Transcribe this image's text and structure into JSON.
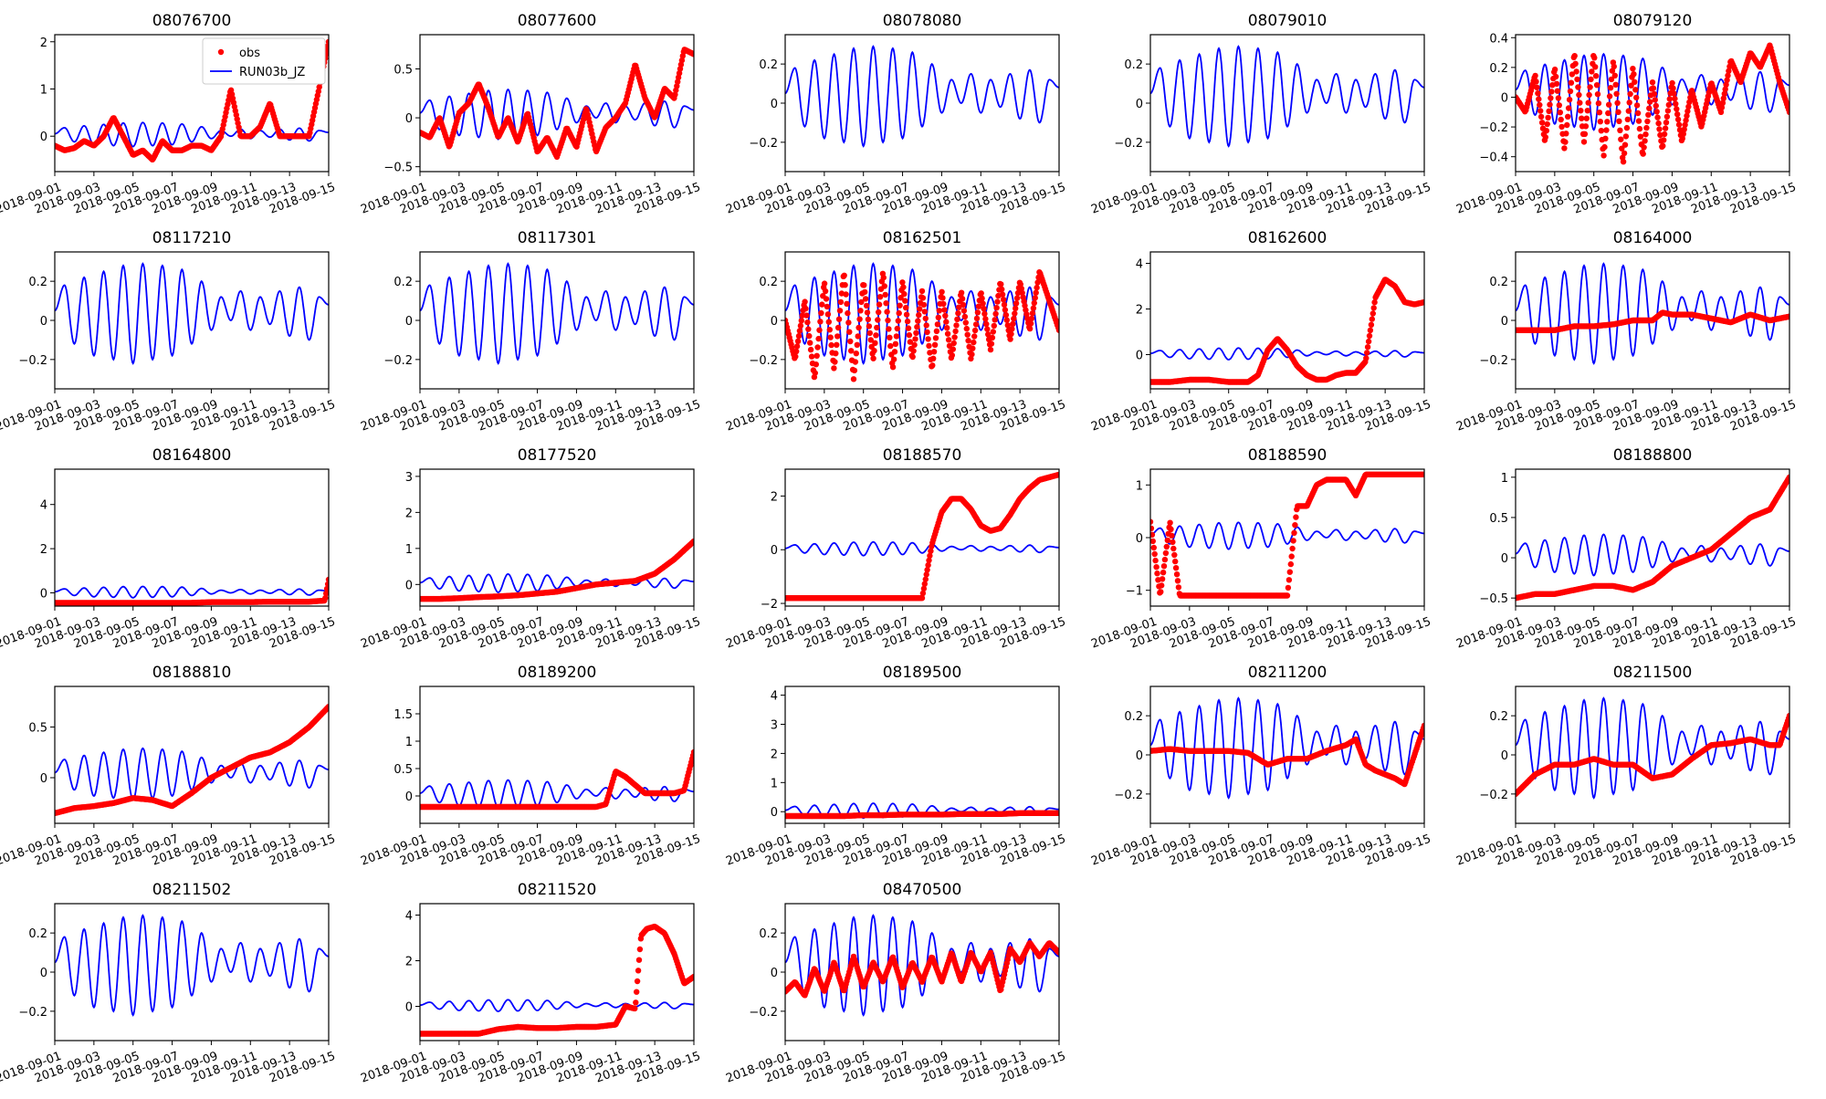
{
  "figure": {
    "columns": 5,
    "rows": 5
  },
  "legend": {
    "obs_label": "obs",
    "model_label": "RUN03b_JZ",
    "placement": "top-right",
    "panel": "08076700"
  },
  "colors": {
    "obs": "#ff0000",
    "model": "#0000ff",
    "axis": "#000000"
  },
  "x_axis": {
    "start": "2018-09-01",
    "end": "2018-09-15",
    "tick_labels": [
      "2018-09-01",
      "2018-09-03",
      "2018-09-05",
      "2018-09-07",
      "2018-09-09",
      "2018-09-11",
      "2018-09-13",
      "2018-09-15"
    ],
    "tick_rotation_deg": -20
  },
  "model_series": {
    "name": "RUN03b_JZ",
    "x_days": [
      0,
      0.5,
      1,
      1.5,
      2,
      2.5,
      3,
      3.5,
      4,
      4.5,
      5,
      5.5,
      6,
      6.5,
      7,
      7.5,
      8,
      8.5,
      9,
      9.5,
      10,
      10.5,
      11,
      11.5,
      12,
      12.5,
      13,
      13.5,
      14
    ],
    "note_values": "approx. shared tide-like oscillation in each panel (m)",
    "values": [
      0.05,
      0.18,
      -0.12,
      0.22,
      -0.18,
      0.25,
      -0.2,
      0.28,
      -0.22,
      0.29,
      -0.2,
      0.28,
      -0.18,
      0.26,
      -0.12,
      0.2,
      -0.05,
      0.12,
      0.0,
      0.15,
      -0.05,
      0.12,
      -0.02,
      0.15,
      -0.08,
      0.17,
      -0.1,
      0.12,
      0.08
    ]
  },
  "chart_data": [
    {
      "type": "scatter",
      "title": "08076700",
      "ylim": [
        -0.75,
        2.15
      ],
      "yticks": [
        0,
        1,
        2
      ],
      "has_obs": true,
      "obs": {
        "x": [
          0,
          0.5,
          1,
          1.5,
          2,
          2.5,
          3,
          3.5,
          4,
          4.5,
          5,
          5.5,
          6,
          6.5,
          7,
          7.5,
          8,
          8.5,
          9,
          9.2,
          9.5,
          10,
          10.5,
          11,
          11.5,
          12,
          12.5,
          13,
          13.5,
          14
        ],
        "y": [
          -0.2,
          -0.3,
          -0.25,
          -0.1,
          -0.2,
          0.0,
          0.4,
          0.0,
          -0.4,
          -0.3,
          -0.5,
          -0.1,
          -0.3,
          -0.3,
          -0.2,
          -0.2,
          -0.3,
          0.0,
          1.0,
          0.6,
          0.0,
          0.0,
          0.2,
          0.7,
          0.0,
          0.0,
          0.0,
          0.0,
          1.0,
          2.0
        ]
      }
    },
    {
      "type": "scatter",
      "title": "08077600",
      "ylim": [
        -0.55,
        0.85
      ],
      "yticks": [
        -0.5,
        0,
        0.5
      ],
      "has_obs": true,
      "obs": {
        "x": [
          0,
          0.5,
          1,
          1.5,
          2,
          2.5,
          3,
          3.5,
          4,
          4.5,
          5,
          5.5,
          6,
          6.5,
          7,
          7.5,
          8,
          8.5,
          9,
          9.5,
          10,
          10.5,
          11,
          11.5,
          12,
          12.5,
          13,
          13.5,
          14
        ],
        "y": [
          -0.15,
          -0.2,
          0.0,
          -0.3,
          0.05,
          0.15,
          0.35,
          0.1,
          -0.2,
          0.0,
          -0.25,
          0.05,
          -0.35,
          -0.2,
          -0.4,
          -0.1,
          -0.3,
          0.1,
          -0.35,
          -0.1,
          0.0,
          0.15,
          0.55,
          0.2,
          0.0,
          0.3,
          0.2,
          0.7,
          0.65
        ]
      }
    },
    {
      "type": "line",
      "title": "08078080",
      "ylim": [
        -0.35,
        0.35
      ],
      "yticks": [
        -0.2,
        0,
        0.2
      ],
      "has_obs": false
    },
    {
      "type": "line",
      "title": "08079010",
      "ylim": [
        -0.35,
        0.35
      ],
      "yticks": [
        -0.2,
        0,
        0.2
      ],
      "has_obs": false
    },
    {
      "type": "scatter",
      "title": "08079120",
      "ylim": [
        -0.5,
        0.42
      ],
      "yticks": [
        -0.4,
        -0.2,
        0,
        0.2,
        0.4
      ],
      "has_obs": true,
      "obs": {
        "x": [
          0,
          0.5,
          1,
          1.5,
          2,
          2.5,
          3,
          3.5,
          4,
          4.5,
          5,
          5.5,
          6,
          6.5,
          7,
          7.5,
          8,
          8.5,
          9,
          9.5,
          10,
          10.5,
          11,
          11.5,
          12,
          12.5,
          13,
          13.5,
          14
        ],
        "y": [
          0.0,
          -0.1,
          0.15,
          -0.3,
          0.2,
          -0.35,
          0.3,
          -0.3,
          0.3,
          -0.4,
          0.25,
          -0.45,
          0.2,
          -0.4,
          0.1,
          -0.35,
          0.1,
          -0.3,
          0.05,
          -0.2,
          0.1,
          -0.1,
          0.25,
          0.1,
          0.3,
          0.2,
          0.35,
          0.1,
          -0.1
        ]
      }
    },
    {
      "type": "line",
      "title": "08117210",
      "ylim": [
        -0.35,
        0.35
      ],
      "yticks": [
        -0.2,
        0,
        0.2
      ],
      "has_obs": false
    },
    {
      "type": "line",
      "title": "08117301",
      "ylim": [
        -0.35,
        0.35
      ],
      "yticks": [
        -0.2,
        0,
        0.2
      ],
      "has_obs": false
    },
    {
      "type": "scatter",
      "title": "08162501",
      "ylim": [
        -0.35,
        0.35
      ],
      "yticks": [
        -0.2,
        0,
        0.2
      ],
      "has_obs": true,
      "obs": {
        "x": [
          0,
          0.5,
          1,
          1.5,
          2,
          2.5,
          3,
          3.5,
          4,
          4.5,
          5,
          5.5,
          6,
          6.5,
          7,
          7.5,
          8,
          8.5,
          9,
          9.5,
          10,
          10.5,
          11,
          11.5,
          12,
          12.5,
          13,
          13.5,
          14
        ],
        "y": [
          0.0,
          -0.2,
          0.1,
          -0.3,
          0.2,
          -0.25,
          0.25,
          -0.3,
          0.2,
          -0.2,
          0.25,
          -0.25,
          0.2,
          -0.2,
          0.15,
          -0.25,
          0.15,
          -0.2,
          0.15,
          -0.2,
          0.15,
          -0.15,
          0.2,
          -0.1,
          0.2,
          -0.05,
          0.25,
          0.1,
          -0.05
        ]
      }
    },
    {
      "type": "scatter",
      "title": "08162600",
      "ylim": [
        -1.5,
        4.5
      ],
      "yticks": [
        0,
        2,
        4
      ],
      "has_obs": true,
      "obs": {
        "x": [
          0,
          1,
          2,
          3,
          4,
          5,
          5.5,
          6,
          6.5,
          7,
          7.5,
          8,
          8.5,
          9,
          9.5,
          10,
          10.5,
          11,
          11.5,
          12,
          12.5,
          13,
          13.5,
          14
        ],
        "y": [
          -1.2,
          -1.2,
          -1.1,
          -1.1,
          -1.2,
          -1.2,
          -0.9,
          0.2,
          0.7,
          0.2,
          -0.5,
          -0.9,
          -1.1,
          -1.1,
          -0.9,
          -0.8,
          -0.8,
          -0.3,
          2.5,
          3.3,
          3.0,
          2.3,
          2.2,
          2.3
        ]
      }
    },
    {
      "type": "scatter",
      "title": "08164000",
      "ylim": [
        -0.35,
        0.35
      ],
      "yticks": [
        -0.2,
        0,
        0.2
      ],
      "has_obs": true,
      "obs": {
        "x": [
          0,
          1,
          2,
          3,
          4,
          5,
          6,
          7,
          7.5,
          8,
          9,
          10,
          11,
          12,
          13,
          14
        ],
        "y": [
          -0.05,
          -0.05,
          -0.05,
          -0.03,
          -0.03,
          -0.02,
          0.0,
          0.0,
          0.04,
          0.03,
          0.03,
          0.01,
          -0.01,
          0.03,
          0.0,
          0.02
        ]
      }
    },
    {
      "type": "scatter",
      "title": "08164800",
      "ylim": [
        -0.6,
        5.6
      ],
      "yticks": [
        0,
        2,
        4
      ],
      "has_obs": true,
      "obs": {
        "x": [
          0,
          1,
          2,
          3,
          4,
          5,
          6,
          7,
          8,
          9,
          10,
          11,
          12,
          13,
          13.8,
          14
        ],
        "y": [
          -0.45,
          -0.45,
          -0.45,
          -0.45,
          -0.45,
          -0.45,
          -0.45,
          -0.45,
          -0.42,
          -0.42,
          -0.42,
          -0.4,
          -0.4,
          -0.4,
          -0.35,
          0.6
        ]
      }
    },
    {
      "type": "scatter",
      "title": "08177520",
      "ylim": [
        -0.6,
        3.2
      ],
      "yticks": [
        0,
        1,
        2,
        3
      ],
      "has_obs": true,
      "obs": {
        "x": [
          0,
          1,
          2,
          3,
          4,
          5,
          6,
          7,
          8,
          9,
          10,
          11,
          12,
          13,
          14
        ],
        "y": [
          -0.4,
          -0.4,
          -0.38,
          -0.35,
          -0.33,
          -0.3,
          -0.25,
          -0.2,
          -0.1,
          0.0,
          0.05,
          0.1,
          0.3,
          0.7,
          1.2
        ]
      }
    },
    {
      "type": "scatter",
      "title": "08188570",
      "ylim": [
        -2.1,
        3.0
      ],
      "yticks": [
        -2,
        0,
        2
      ],
      "has_obs": true,
      "obs": {
        "x": [
          0,
          1,
          2,
          3,
          4,
          5,
          6,
          7,
          7.5,
          8,
          8.5,
          9,
          9.5,
          10,
          10.5,
          11,
          11.5,
          12,
          12.5,
          13,
          13.5,
          14
        ],
        "y": [
          -1.8,
          -1.8,
          -1.8,
          -1.8,
          -1.8,
          -1.8,
          -1.8,
          -1.8,
          0.2,
          1.4,
          1.9,
          1.9,
          1.5,
          0.9,
          0.7,
          0.8,
          1.3,
          1.9,
          2.3,
          2.6,
          2.7,
          2.8
        ]
      }
    },
    {
      "type": "scatter",
      "title": "08188590",
      "ylim": [
        -1.3,
        1.3
      ],
      "yticks": [
        -1,
        0,
        1
      ],
      "has_obs": true,
      "obs": {
        "x": [
          0,
          0.5,
          1,
          1.5,
          2,
          3,
          4,
          5,
          6,
          7,
          7.5,
          8,
          8.5,
          9,
          10,
          10.5,
          11,
          12,
          13,
          14
        ],
        "y": [
          0.3,
          -1.1,
          0.3,
          -1.1,
          -1.1,
          -1.1,
          -1.1,
          -1.1,
          -1.1,
          -1.1,
          0.6,
          0.6,
          1.0,
          1.1,
          1.1,
          0.8,
          1.2,
          1.2,
          1.2,
          1.2
        ]
      }
    },
    {
      "type": "scatter",
      "title": "08188800",
      "ylim": [
        -0.6,
        1.1
      ],
      "yticks": [
        -0.5,
        0,
        0.5,
        1.0
      ],
      "has_obs": true,
      "obs": {
        "x": [
          0,
          1,
          2,
          3,
          4,
          5,
          6,
          7,
          8,
          9,
          10,
          11,
          12,
          13,
          14
        ],
        "y": [
          -0.5,
          -0.45,
          -0.45,
          -0.4,
          -0.35,
          -0.35,
          -0.4,
          -0.3,
          -0.1,
          0.0,
          0.1,
          0.3,
          0.5,
          0.6,
          1.0
        ]
      }
    },
    {
      "type": "scatter",
      "title": "08188810",
      "ylim": [
        -0.45,
        0.9
      ],
      "yticks": [
        0,
        0.5
      ],
      "has_obs": true,
      "obs": {
        "x": [
          0,
          1,
          2,
          3,
          4,
          5,
          6,
          7,
          8,
          9,
          10,
          11,
          12,
          13,
          14
        ],
        "y": [
          -0.35,
          -0.3,
          -0.28,
          -0.25,
          -0.2,
          -0.22,
          -0.28,
          -0.15,
          0.0,
          0.1,
          0.2,
          0.25,
          0.35,
          0.5,
          0.7
        ]
      }
    },
    {
      "type": "scatter",
      "title": "08189200",
      "ylim": [
        -0.5,
        2.0
      ],
      "yticks": [
        0,
        0.5,
        1.0,
        1.5
      ],
      "has_obs": true,
      "obs": {
        "x": [
          0,
          1,
          2,
          3,
          4,
          5,
          6,
          7,
          8,
          9,
          9.5,
          10,
          10.5,
          11,
          11.5,
          12,
          12.5,
          13,
          13.5,
          14
        ],
        "y": [
          -0.2,
          -0.2,
          -0.2,
          -0.2,
          -0.2,
          -0.2,
          -0.2,
          -0.2,
          -0.2,
          -0.2,
          -0.15,
          0.45,
          0.35,
          0.2,
          0.05,
          0.05,
          0.05,
          0.05,
          0.1,
          0.8
        ]
      }
    },
    {
      "type": "scatter",
      "title": "08189500",
      "ylim": [
        -0.4,
        4.3
      ],
      "yticks": [
        0,
        1,
        2,
        3,
        4
      ],
      "has_obs": true,
      "obs": {
        "x": [
          0,
          1,
          2,
          3,
          4,
          5,
          6,
          7,
          8,
          9,
          10,
          11,
          12,
          13,
          14
        ],
        "y": [
          -0.15,
          -0.15,
          -0.15,
          -0.15,
          -0.12,
          -0.12,
          -0.1,
          -0.1,
          -0.1,
          -0.08,
          -0.08,
          -0.08,
          -0.05,
          -0.05,
          -0.05
        ]
      }
    },
    {
      "type": "scatter",
      "title": "08211200",
      "ylim": [
        -0.35,
        0.35
      ],
      "yticks": [
        -0.2,
        0,
        0.2
      ],
      "has_obs": true,
      "obs": {
        "x": [
          0,
          1,
          2,
          3,
          4,
          5,
          6,
          7,
          8,
          9,
          10,
          10.5,
          11,
          11.5,
          12,
          12.5,
          13,
          13.5,
          14
        ],
        "y": [
          0.02,
          0.03,
          0.02,
          0.02,
          0.02,
          0.01,
          -0.05,
          -0.02,
          -0.02,
          0.02,
          0.05,
          0.08,
          -0.05,
          -0.08,
          -0.1,
          -0.12,
          -0.15,
          0.0,
          0.15
        ]
      }
    },
    {
      "type": "scatter",
      "title": "08211500",
      "ylim": [
        -0.35,
        0.35
      ],
      "yticks": [
        -0.2,
        0,
        0.2
      ],
      "has_obs": true,
      "obs": {
        "x": [
          0,
          1,
          2,
          3,
          4,
          5,
          6,
          7,
          8,
          9,
          10,
          11,
          12,
          13,
          13.5,
          14
        ],
        "y": [
          -0.2,
          -0.1,
          -0.05,
          -0.05,
          -0.02,
          -0.05,
          -0.05,
          -0.12,
          -0.1,
          -0.02,
          0.05,
          0.06,
          0.08,
          0.05,
          0.05,
          0.2
        ]
      }
    },
    {
      "type": "line",
      "title": "08211502",
      "ylim": [
        -0.35,
        0.35
      ],
      "yticks": [
        -0.2,
        0,
        0.2
      ],
      "has_obs": false
    },
    {
      "type": "scatter",
      "title": "08211520",
      "ylim": [
        -1.5,
        4.5
      ],
      "yticks": [
        0,
        2,
        4
      ],
      "has_obs": true,
      "obs": {
        "x": [
          0,
          1,
          2,
          3,
          4,
          5,
          6,
          7,
          8,
          9,
          10,
          10.5,
          11,
          11.3,
          11.6,
          12,
          12.5,
          13,
          13.5,
          14
        ],
        "y": [
          -1.2,
          -1.2,
          -1.2,
          -1.2,
          -1.0,
          -0.9,
          -0.95,
          -0.95,
          -0.9,
          -0.9,
          -0.8,
          0.0,
          -0.1,
          3.1,
          3.4,
          3.5,
          3.2,
          2.3,
          1.0,
          1.3
        ]
      }
    },
    {
      "type": "scatter",
      "title": "08470500",
      "ylim": [
        -0.35,
        0.35
      ],
      "yticks": [
        -0.2,
        0,
        0.2
      ],
      "has_obs": true,
      "obs": {
        "x": [
          0,
          0.5,
          1,
          1.5,
          2,
          2.5,
          3,
          3.5,
          4,
          4.5,
          5,
          5.5,
          6,
          6.5,
          7,
          7.5,
          8,
          8.5,
          9,
          9.5,
          10,
          10.5,
          11,
          11.5,
          12,
          12.5,
          13,
          13.5,
          14
        ],
        "y": [
          -0.1,
          -0.05,
          -0.12,
          0.02,
          -0.1,
          0.05,
          -0.1,
          0.08,
          -0.08,
          0.05,
          -0.05,
          0.08,
          -0.08,
          0.05,
          -0.05,
          0.08,
          -0.05,
          0.1,
          -0.05,
          0.1,
          0.0,
          0.1,
          -0.1,
          0.12,
          0.05,
          0.15,
          0.08,
          0.15,
          0.1
        ]
      }
    }
  ]
}
